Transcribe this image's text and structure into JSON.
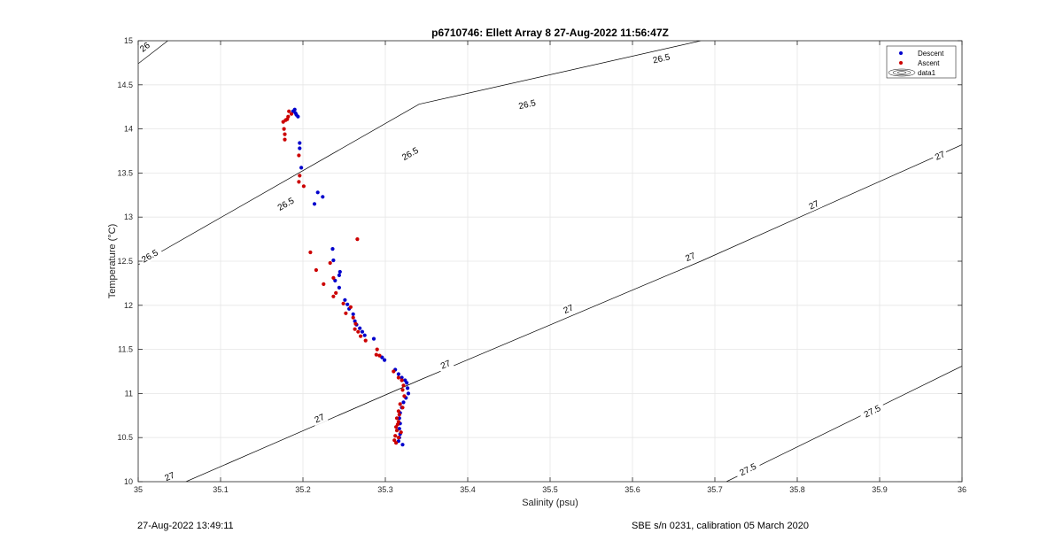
{
  "chart_data": {
    "type": "scatter",
    "title": "p6710746: Ellett Array 8 27-Aug-2022 11:56:47Z",
    "xlabel": "Salinity (psu)",
    "ylabel": "Temperature (°C)",
    "xlim": [
      35,
      36
    ],
    "ylim": [
      10,
      15
    ],
    "xticks": [
      "35",
      "35.1",
      "35.2",
      "35.3",
      "35.4",
      "35.5",
      "35.6",
      "35.7",
      "35.8",
      "35.9",
      "36"
    ],
    "yticks": [
      "10",
      "10.5",
      "11",
      "11.5",
      "12",
      "12.5",
      "13",
      "13.5",
      "14",
      "14.5",
      "15"
    ],
    "grid": true,
    "legend_placement": "top-right",
    "series": [
      {
        "name": "Descent",
        "color": "#0000cc",
        "points": [
          [
            35.19,
            14.22
          ],
          [
            35.192,
            14.16
          ],
          [
            35.188,
            14.2
          ],
          [
            35.194,
            14.14
          ],
          [
            35.191,
            14.18
          ],
          [
            35.196,
            13.84
          ],
          [
            35.196,
            13.78
          ],
          [
            35.198,
            13.56
          ],
          [
            35.218,
            13.28
          ],
          [
            35.224,
            13.23
          ],
          [
            35.214,
            13.15
          ],
          [
            35.236,
            12.64
          ],
          [
            35.237,
            12.51
          ],
          [
            35.245,
            12.38
          ],
          [
            35.244,
            12.34
          ],
          [
            35.239,
            12.28
          ],
          [
            35.244,
            12.2
          ],
          [
            35.251,
            12.06
          ],
          [
            35.254,
            12.01
          ],
          [
            35.256,
            11.96
          ],
          [
            35.261,
            11.9
          ],
          [
            35.263,
            11.82
          ],
          [
            35.265,
            11.78
          ],
          [
            35.269,
            11.74
          ],
          [
            35.272,
            11.7
          ],
          [
            35.275,
            11.66
          ],
          [
            35.286,
            11.62
          ],
          [
            35.296,
            11.41
          ],
          [
            35.299,
            11.38
          ],
          [
            35.312,
            11.27
          ],
          [
            35.316,
            11.22
          ],
          [
            35.32,
            11.18
          ],
          [
            35.324,
            11.15
          ],
          [
            35.326,
            11.12
          ],
          [
            35.327,
            11.06
          ],
          [
            35.328,
            11.0
          ],
          [
            35.325,
            10.95
          ],
          [
            35.322,
            10.9
          ],
          [
            35.32,
            10.84
          ],
          [
            35.318,
            10.78
          ],
          [
            35.317,
            10.72
          ],
          [
            35.318,
            10.66
          ],
          [
            35.317,
            10.6
          ],
          [
            35.318,
            10.54
          ],
          [
            35.317,
            10.5
          ],
          [
            35.316,
            10.46
          ],
          [
            35.321,
            10.42
          ]
        ]
      },
      {
        "name": "Ascent",
        "color": "#cc0000",
        "points": [
          [
            35.183,
            14.2
          ],
          [
            35.186,
            14.17
          ],
          [
            35.182,
            14.14
          ],
          [
            35.179,
            14.1
          ],
          [
            35.176,
            14.08
          ],
          [
            35.181,
            14.11
          ],
          [
            35.177,
            14.0
          ],
          [
            35.178,
            13.94
          ],
          [
            35.178,
            13.88
          ],
          [
            35.195,
            13.7
          ],
          [
            35.196,
            13.47
          ],
          [
            35.195,
            13.4
          ],
          [
            35.201,
            13.35
          ],
          [
            35.266,
            12.75
          ],
          [
            35.209,
            12.6
          ],
          [
            35.233,
            12.48
          ],
          [
            35.216,
            12.4
          ],
          [
            35.237,
            12.31
          ],
          [
            35.225,
            12.24
          ],
          [
            35.24,
            12.14
          ],
          [
            35.237,
            12.1
          ],
          [
            35.249,
            12.02
          ],
          [
            35.258,
            11.98
          ],
          [
            35.252,
            11.91
          ],
          [
            35.261,
            11.86
          ],
          [
            35.264,
            11.79
          ],
          [
            35.263,
            11.73
          ],
          [
            35.267,
            11.7
          ],
          [
            35.27,
            11.65
          ],
          [
            35.276,
            11.6
          ],
          [
            35.29,
            11.5
          ],
          [
            35.289,
            11.44
          ],
          [
            35.293,
            11.43
          ],
          [
            35.31,
            11.25
          ],
          [
            35.316,
            11.18
          ],
          [
            35.32,
            11.15
          ],
          [
            35.322,
            11.09
          ],
          [
            35.321,
            11.04
          ],
          [
            35.323,
            10.97
          ],
          [
            35.318,
            10.88
          ],
          [
            35.321,
            10.84
          ],
          [
            35.316,
            10.8
          ],
          [
            35.317,
            10.76
          ],
          [
            35.314,
            10.72
          ],
          [
            35.316,
            10.68
          ],
          [
            35.313,
            10.62
          ],
          [
            35.314,
            10.58
          ],
          [
            35.312,
            10.52
          ],
          [
            35.311,
            10.47
          ],
          [
            35.313,
            10.44
          ],
          [
            35.316,
            10.5
          ],
          [
            35.319,
            10.56
          ],
          [
            35.315,
            10.65
          ]
        ]
      }
    ],
    "contours": [
      {
        "name": "data1",
        "color": "#000000",
        "lines": [
          {
            "level": 26,
            "points": [
              [
                35.0,
                14.74
              ],
              [
                35.036,
                15.0
              ]
            ],
            "labels": [
              {
                "text": "26",
                "at": [
                  35.008,
                  14.93
                ]
              }
            ]
          },
          {
            "level": 26.5,
            "points": [
              [
                35.0,
                12.46
              ],
              [
                35.341,
                14.28
              ],
              [
                35.683,
                15.0
              ]
            ],
            "labels": [
              {
                "text": "26.5",
                "at": [
                  35.014,
                  12.56
                ]
              },
              {
                "text": "26.5",
                "at": [
                  35.179,
                  13.15
                ]
              },
              {
                "text": "26.5",
                "at": [
                  35.33,
                  13.72
                ]
              },
              {
                "text": "26.5",
                "at": [
                  35.472,
                  14.28
                ]
              },
              {
                "text": "26.5",
                "at": [
                  35.635,
                  14.8
                ]
              }
            ]
          },
          {
            "level": 27,
            "points": [
              [
                35.058,
                10.0
              ],
              [
                35.341,
                11.15
              ],
              [
                35.683,
                12.5
              ],
              [
                36.0,
                13.82
              ]
            ],
            "labels": [
              {
                "text": "27",
                "at": [
                  35.038,
                  10.06
                ]
              },
              {
                "text": "27",
                "at": [
                  35.22,
                  10.72
                ]
              },
              {
                "text": "27",
                "at": [
                  35.373,
                  11.33
                ]
              },
              {
                "text": "27",
                "at": [
                  35.522,
                  11.96
                ]
              },
              {
                "text": "27",
                "at": [
                  35.67,
                  12.55
                ]
              },
              {
                "text": "27",
                "at": [
                  35.82,
                  13.14
                ]
              },
              {
                "text": "27",
                "at": [
                  35.973,
                  13.7
                ]
              }
            ]
          },
          {
            "level": 27.5,
            "points": [
              [
                35.714,
                10.0
              ],
              [
                36.0,
                11.31
              ]
            ],
            "labels": [
              {
                "text": "27.5",
                "at": [
                  35.74,
                  10.14
                ]
              },
              {
                "text": "27.5",
                "at": [
                  35.891,
                  10.8
                ]
              }
            ]
          }
        ]
      }
    ]
  },
  "footer": {
    "timestamp": "27-Aug-2022 13:49:11",
    "sensor_info": "SBE s/n 0231, calibration 05 March 2020"
  }
}
